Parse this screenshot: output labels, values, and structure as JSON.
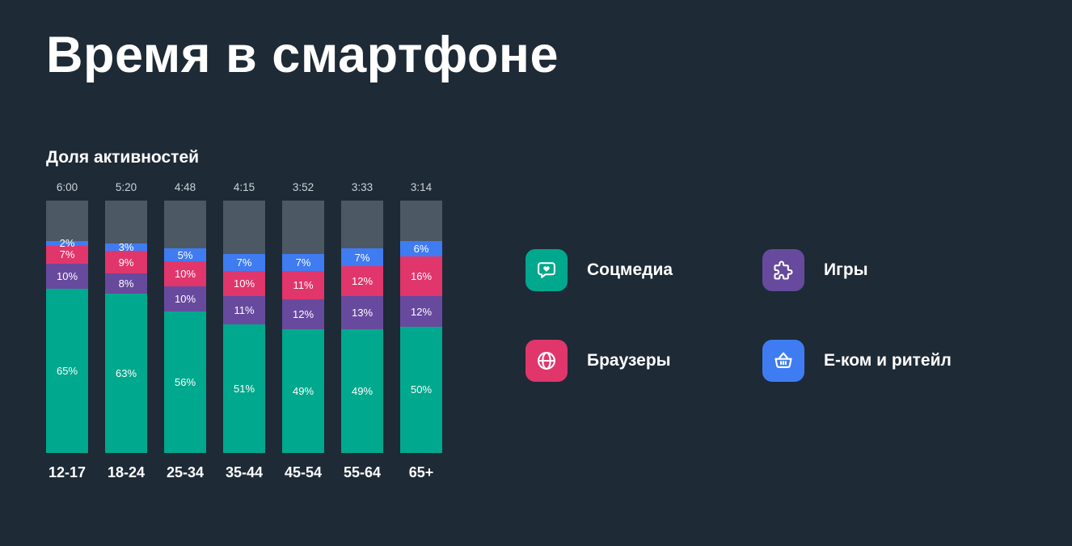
{
  "page": {
    "title": "Время в смартфоне",
    "background": "#1e2a36"
  },
  "colors": {
    "social": "#00a88e",
    "games": "#674a9e",
    "browsers": "#e0366b",
    "ecom": "#3f7cf2",
    "other": "#4c5864",
    "text": "#ffffff",
    "muted_text": "#ccd4db"
  },
  "chart_data": {
    "type": "bar",
    "stacked": true,
    "title": "Доля активностей",
    "unit": "%",
    "ylim": [
      0,
      100
    ],
    "grid": false,
    "legend_position": "right",
    "categories": [
      "12-17",
      "18-24",
      "25-34",
      "35-44",
      "45-54",
      "55-64",
      "65+"
    ],
    "bar_totals_time": [
      "6:00",
      "5:20",
      "4:48",
      "4:15",
      "3:52",
      "3:33",
      "3:14"
    ],
    "series": [
      {
        "name": "Соцмедиа",
        "color_key": "social",
        "values": [
          65,
          63,
          56,
          51,
          49,
          49,
          50
        ]
      },
      {
        "name": "Игры",
        "color_key": "games",
        "values": [
          10,
          8,
          10,
          11,
          12,
          13,
          12
        ]
      },
      {
        "name": "Браузеры",
        "color_key": "browsers",
        "values": [
          7,
          9,
          10,
          10,
          11,
          12,
          16
        ]
      },
      {
        "name": "Е-ком и ритейл",
        "color_key": "ecom",
        "values": [
          2,
          3,
          5,
          7,
          7,
          7,
          6
        ]
      },
      {
        "name": "other",
        "color_key": "other",
        "values": [
          16,
          17,
          19,
          21,
          21,
          19,
          16
        ],
        "show_label": false
      }
    ]
  },
  "legend": {
    "items": [
      {
        "label": "Соцмедиа",
        "icon": "chat-heart-icon",
        "color_key": "social"
      },
      {
        "label": "Игры",
        "icon": "puzzle-icon",
        "color_key": "games"
      },
      {
        "label": "Браузеры",
        "icon": "globe-icon",
        "color_key": "browsers"
      },
      {
        "label": "Е-ком и ритейл",
        "icon": "basket-icon",
        "color_key": "ecom"
      }
    ]
  }
}
